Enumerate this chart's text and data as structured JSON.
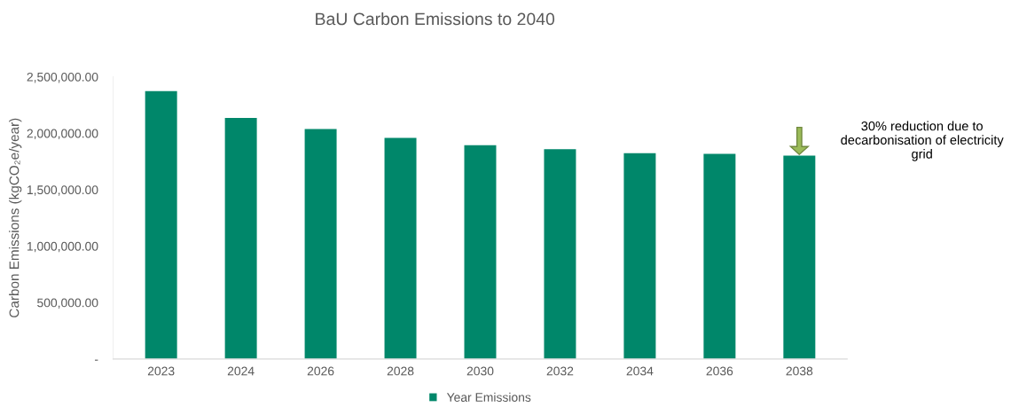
{
  "chart_data": {
    "type": "bar",
    "title": "BaU Carbon Emissions to 2040",
    "ylabel": "Carbon Emissions (kgCO₂e/year)",
    "categories": [
      "2023",
      "2024",
      "2026",
      "2028",
      "2030",
      "2032",
      "2034",
      "2036",
      "2038"
    ],
    "series": [
      {
        "name": "Year Emissions",
        "color": "#00876a",
        "values": [
          2372000,
          2135000,
          2037000,
          1958000,
          1893000,
          1858000,
          1823000,
          1817000,
          1802000
        ]
      }
    ],
    "ylim": [
      0,
      2500000
    ],
    "yticks": [
      {
        "value": 0,
        "label": "-"
      },
      {
        "value": 500000,
        "label": "500,000.00"
      },
      {
        "value": 1000000,
        "label": "1,000,000.00"
      },
      {
        "value": 1500000,
        "label": "1,500,000.00"
      },
      {
        "value": 2000000,
        "label": "2,000,000.00"
      },
      {
        "value": 2500000,
        "label": "2,500,000.00"
      }
    ],
    "annotations": [
      "30% reduction due to\ndecarbonisation of electricity\ngrid"
    ],
    "grid": false,
    "legend": "bottom"
  }
}
